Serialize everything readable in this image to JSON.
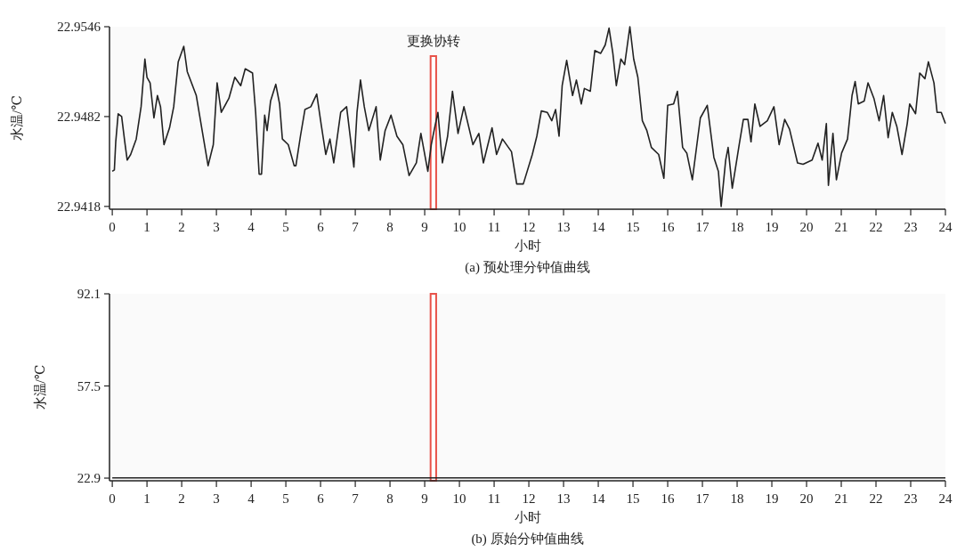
{
  "chart_data": [
    {
      "type": "line",
      "title": "(a) 预处理分钟值曲线",
      "xlabel": "小时",
      "ylabel": "水温/℃",
      "xlim": [
        -0.08,
        24
      ],
      "ylim": [
        22.9416,
        22.9546
      ],
      "xticks": [
        0,
        1,
        2,
        3,
        4,
        5,
        6,
        7,
        8,
        9,
        10,
        11,
        12,
        13,
        14,
        15,
        16,
        17,
        18,
        19,
        20,
        21,
        22,
        23,
        24
      ],
      "yticks": [
        22.9418,
        22.9482,
        22.9546
      ],
      "bands": [
        {
          "axis": "x",
          "from": 9.17,
          "to": 9.33,
          "label": "更换协转",
          "color": "#e8534a"
        }
      ],
      "x": [
        0,
        0.06,
        0.1,
        0.17,
        0.27,
        0.36,
        0.43,
        0.53,
        0.69,
        0.83,
        0.94,
        1.0,
        1.09,
        1.2,
        1.3,
        1.39,
        1.49,
        1.65,
        1.77,
        1.9,
        2.06,
        2.16,
        2.42,
        2.63,
        2.76,
        2.91,
        3.02,
        3.14,
        3.36,
        3.53,
        3.7,
        3.83,
        4.04,
        4.13,
        4.23,
        4.3,
        4.39,
        4.46,
        4.56,
        4.71,
        4.82,
        4.9,
        5.07,
        5.24,
        5.29,
        5.42,
        5.55,
        5.72,
        5.89,
        6.02,
        6.15,
        6.27,
        6.38,
        6.58,
        6.75,
        6.96,
        7.05,
        7.15,
        7.26,
        7.39,
        7.6,
        7.72,
        7.86,
        8.03,
        8.2,
        8.37,
        8.55,
        8.76,
        8.89,
        9.09,
        9.19,
        9.27,
        9.38,
        9.51,
        9.66,
        9.8,
        9.96,
        10.13,
        10.39,
        10.56,
        10.69,
        10.94,
        11.07,
        11.24,
        11.5,
        11.65,
        11.84,
        12.1,
        12.23,
        12.36,
        12.53,
        12.66,
        12.77,
        12.87,
        12.96,
        13.09,
        13.26,
        13.37,
        13.51,
        13.6,
        13.77,
        13.9,
        14.07,
        14.2,
        14.31,
        14.42,
        14.52,
        14.65,
        14.76,
        14.91,
        15.02,
        15.14,
        15.27,
        15.4,
        15.53,
        15.74,
        15.89,
        16.0,
        16.17,
        16.28,
        16.43,
        16.55,
        16.71,
        16.94,
        17.14,
        17.33,
        17.46,
        17.54,
        17.67,
        17.74,
        17.86,
        18.06,
        18.18,
        18.31,
        18.4,
        18.51,
        18.66,
        18.87,
        19.06,
        19.21,
        19.37,
        19.51,
        19.74,
        19.9,
        20.16,
        20.33,
        20.45,
        20.57,
        20.63,
        20.76,
        20.86,
        21.01,
        21.18,
        21.31,
        21.4,
        21.49,
        21.66,
        21.77,
        21.94,
        22.09,
        22.22,
        22.35,
        22.47,
        22.6,
        22.75,
        22.9,
        22.97,
        23.14,
        23.26,
        23.41,
        23.51,
        23.67,
        23.76,
        23.88,
        24.0
      ],
      "series": [
        {
          "color": "#222222",
          "values": [
            22.9443,
            22.9444,
            22.9464,
            22.9484,
            22.9482,
            22.9464,
            22.9451,
            22.9455,
            22.9466,
            22.9489,
            22.9523,
            22.951,
            22.9506,
            22.9481,
            22.9497,
            22.9489,
            22.9462,
            22.9474,
            22.9489,
            22.9521,
            22.9532,
            22.9514,
            22.9497,
            22.9466,
            22.9447,
            22.9462,
            22.9506,
            22.9485,
            22.9495,
            22.951,
            22.9504,
            22.9516,
            22.9513,
            22.9485,
            22.9441,
            22.9441,
            22.9483,
            22.9472,
            22.9493,
            22.9505,
            22.9491,
            22.9466,
            22.9462,
            22.9447,
            22.9447,
            22.9468,
            22.9487,
            22.9489,
            22.9498,
            22.9476,
            22.9455,
            22.9466,
            22.9449,
            22.9485,
            22.9489,
            22.9446,
            22.9485,
            22.9508,
            22.9489,
            22.9472,
            22.9489,
            22.9451,
            22.9472,
            22.9483,
            22.9468,
            22.9462,
            22.944,
            22.9449,
            22.947,
            22.9443,
            22.9462,
            22.9472,
            22.9485,
            22.9449,
            22.9468,
            22.95,
            22.947,
            22.9489,
            22.9462,
            22.947,
            22.9449,
            22.9474,
            22.9455,
            22.9466,
            22.9457,
            22.9434,
            22.9434,
            22.9455,
            22.9468,
            22.9486,
            22.9485,
            22.9479,
            22.9487,
            22.9468,
            22.9504,
            22.9522,
            22.9497,
            22.9508,
            22.9491,
            22.9502,
            22.95,
            22.9529,
            22.9527,
            22.9533,
            22.9545,
            22.9527,
            22.9504,
            22.9523,
            22.9519,
            22.9546,
            22.9523,
            22.951,
            22.9479,
            22.9472,
            22.946,
            22.9455,
            22.9438,
            22.949,
            22.9491,
            22.95,
            22.946,
            22.9456,
            22.9437,
            22.9481,
            22.949,
            22.9453,
            22.9443,
            22.9418,
            22.9451,
            22.946,
            22.9431,
            22.9462,
            22.948,
            22.948,
            22.9464,
            22.9491,
            22.9475,
            22.9479,
            22.9489,
            22.9462,
            22.948,
            22.9473,
            22.9449,
            22.9448,
            22.9451,
            22.9463,
            22.9451,
            22.9477,
            22.9433,
            22.947,
            22.9437,
            22.9456,
            22.9466,
            22.9497,
            22.9507,
            22.9491,
            22.9493,
            22.9506,
            22.9495,
            22.9479,
            22.9497,
            22.9467,
            22.9485,
            22.9475,
            22.9455,
            22.9477,
            22.9491,
            22.9484,
            22.9513,
            22.9509,
            22.9521,
            22.9506,
            22.9485,
            22.9485,
            22.9477
          ]
        }
      ]
    },
    {
      "type": "line",
      "title": "(b) 原始分钟值曲线",
      "xlabel": "小时",
      "ylabel": "水温/℃",
      "xlim": [
        -0.08,
        24
      ],
      "ylim": [
        21.9,
        92.1
      ],
      "xticks": [
        0,
        1,
        2,
        3,
        4,
        5,
        6,
        7,
        8,
        9,
        10,
        11,
        12,
        13,
        14,
        15,
        16,
        17,
        18,
        19,
        20,
        21,
        22,
        23,
        24
      ],
      "yticks": [
        22.9,
        57.5,
        92.1
      ],
      "bands": [
        {
          "axis": "x",
          "from": 9.17,
          "to": 9.33,
          "color": "#e8534a"
        }
      ],
      "x": [
        0,
        24
      ],
      "series": [
        {
          "color": "#222222",
          "values": [
            23,
            23
          ]
        }
      ]
    }
  ]
}
